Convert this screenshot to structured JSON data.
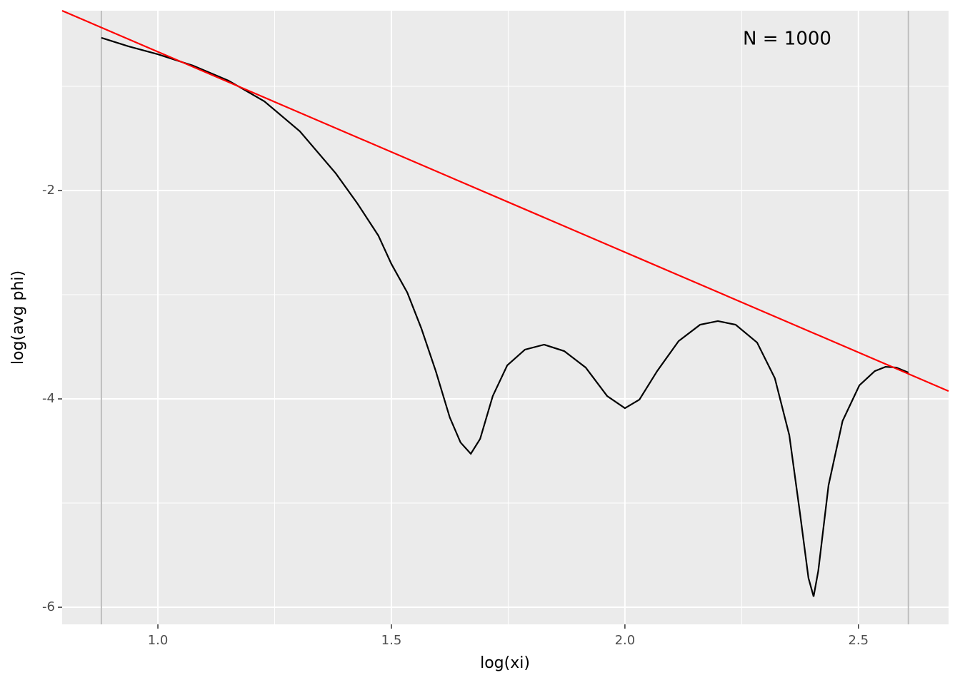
{
  "chart_data": {
    "type": "line",
    "xlabel": "log(xi)",
    "ylabel": "log(avg phi)",
    "annotation": "N = 1000",
    "xlim": [
      0.795,
      2.693
    ],
    "ylim": [
      -6.164,
      -0.274
    ],
    "xticks": [
      {
        "value": 1,
        "label": "1.0"
      },
      {
        "value": 1.5,
        "label": "1.5"
      },
      {
        "value": 2,
        "label": "2.0"
      },
      {
        "value": 2.5,
        "label": "2.5"
      }
    ],
    "yticks": [
      -6,
      -4,
      -2
    ],
    "xminor": [
      1.25,
      1.75,
      2.25
    ],
    "yminor": [
      -5,
      -3,
      -1
    ],
    "grid": true,
    "vlines": [
      0.879,
      2.607
    ],
    "vline_color": "#bebebe",
    "series": [
      {
        "color": "#000000",
        "x": [
          0.879,
          0.937,
          1.0,
          1.075,
          1.151,
          1.228,
          1.304,
          1.381,
          1.427,
          1.472,
          1.5,
          1.534,
          1.564,
          1.595,
          1.625,
          1.648,
          1.67,
          1.69,
          1.717,
          1.748,
          1.786,
          1.827,
          1.87,
          1.916,
          1.962,
          2.0,
          2.031,
          2.069,
          2.115,
          2.161,
          2.199,
          2.237,
          2.283,
          2.321,
          2.352,
          2.375,
          2.393,
          2.404,
          2.414,
          2.436,
          2.466,
          2.502,
          2.535,
          2.558,
          2.581,
          2.607
        ],
        "values": [
          -0.534,
          -0.616,
          -0.692,
          -0.801,
          -0.945,
          -1.144,
          -1.432,
          -1.836,
          -2.123,
          -2.432,
          -2.705,
          -2.979,
          -3.322,
          -3.733,
          -4.178,
          -4.418,
          -4.527,
          -4.384,
          -3.973,
          -3.678,
          -3.527,
          -3.479,
          -3.541,
          -3.699,
          -3.973,
          -4.089,
          -4.007,
          -3.733,
          -3.445,
          -3.288,
          -3.253,
          -3.288,
          -3.459,
          -3.801,
          -4.349,
          -5.103,
          -5.719,
          -5.897,
          -5.651,
          -4.829,
          -4.212,
          -3.87,
          -3.733,
          -3.692,
          -3.699,
          -3.747
        ]
      },
      {
        "color": "#ff0000",
        "x": [
          0.795,
          2.693
        ],
        "values": [
          -0.274,
          -3.925
        ]
      }
    ]
  }
}
